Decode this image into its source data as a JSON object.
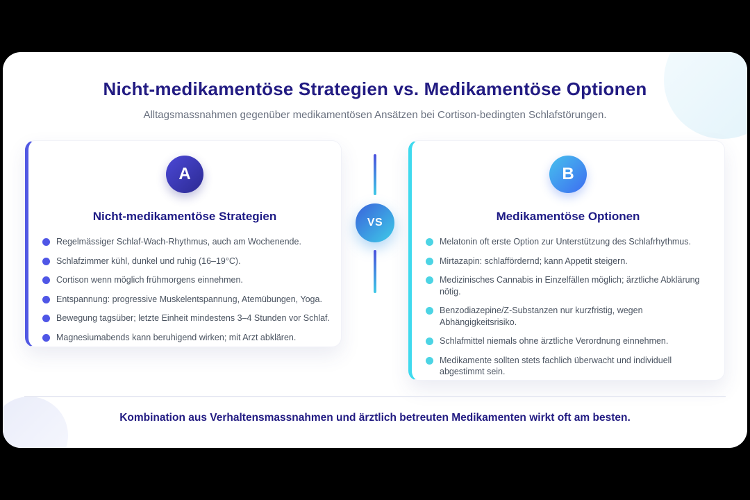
{
  "header": {
    "title": "Nicht-medikamentöse Strategien vs. Medikamentöse Optionen",
    "subtitle": "Alltagsmassnahmen gegenüber medikamentösen Ansätzen bei Cortison-bedingten Schlafstörungen."
  },
  "comparison": {
    "vs_label": "VS",
    "left": {
      "badge": "A",
      "title": "Nicht-medikamentöse Strategien",
      "accent_color": "#5158e3",
      "items": [
        "Regelmässiger Schlaf-Wach-Rhythmus, auch am Wochenende.",
        "Schlafzimmer kühl, dunkel und ruhig (16–19°C).",
        "Cortison wenn möglich frühmorgens einnehmen.",
        "Entspannung: progressive Muskelentspannung, Atemübungen, Yoga.",
        "Bewegung tagsüber; letzte Einheit mindestens 3–4 Stunden vor Schlaf.",
        "Magnesiumabends kann beruhigend wirken; mit Arzt abklären."
      ]
    },
    "right": {
      "badge": "B",
      "title": "Medikamentöse Optionen",
      "accent_color": "#3fdaee",
      "items": [
        "Melatonin oft erste Option zur Unterstützung des Schlafrhythmus.",
        "Mirtazapin: schlaffördernd; kann Appetit steigern.",
        "Medizinisches Cannabis in Einzelfällen möglich; ärztliche Abklärung nötig.",
        "Benzodiazepine/Z-Substanzen nur kurzfristig, wegen Abhängigkeitsrisiko.",
        "Schlafmittel niemals ohne ärztliche Verordnung einnehmen.",
        "Medikamente sollten stets fachlich überwacht und individuell abgestimmt sein."
      ]
    }
  },
  "footer": {
    "text": "Kombination aus Verhaltensmassnahmen und ärztlich betreuten Medikamenten wirkt oft am besten."
  },
  "colors": {
    "background": "#000000",
    "card_background": "#ffffff",
    "title_text": "#221b82",
    "subtitle_text": "#6b7280",
    "body_text": "#4a5360",
    "left_accent": "#5158e3",
    "right_accent": "#3fdaee",
    "badge_a_gradient": [
      "#4b48d6",
      "#2c2a92"
    ],
    "badge_b_gradient": [
      "#47c0ee",
      "#3d6df0"
    ],
    "vs_gradient": [
      "#3a63db",
      "#3ecbe8"
    ]
  }
}
